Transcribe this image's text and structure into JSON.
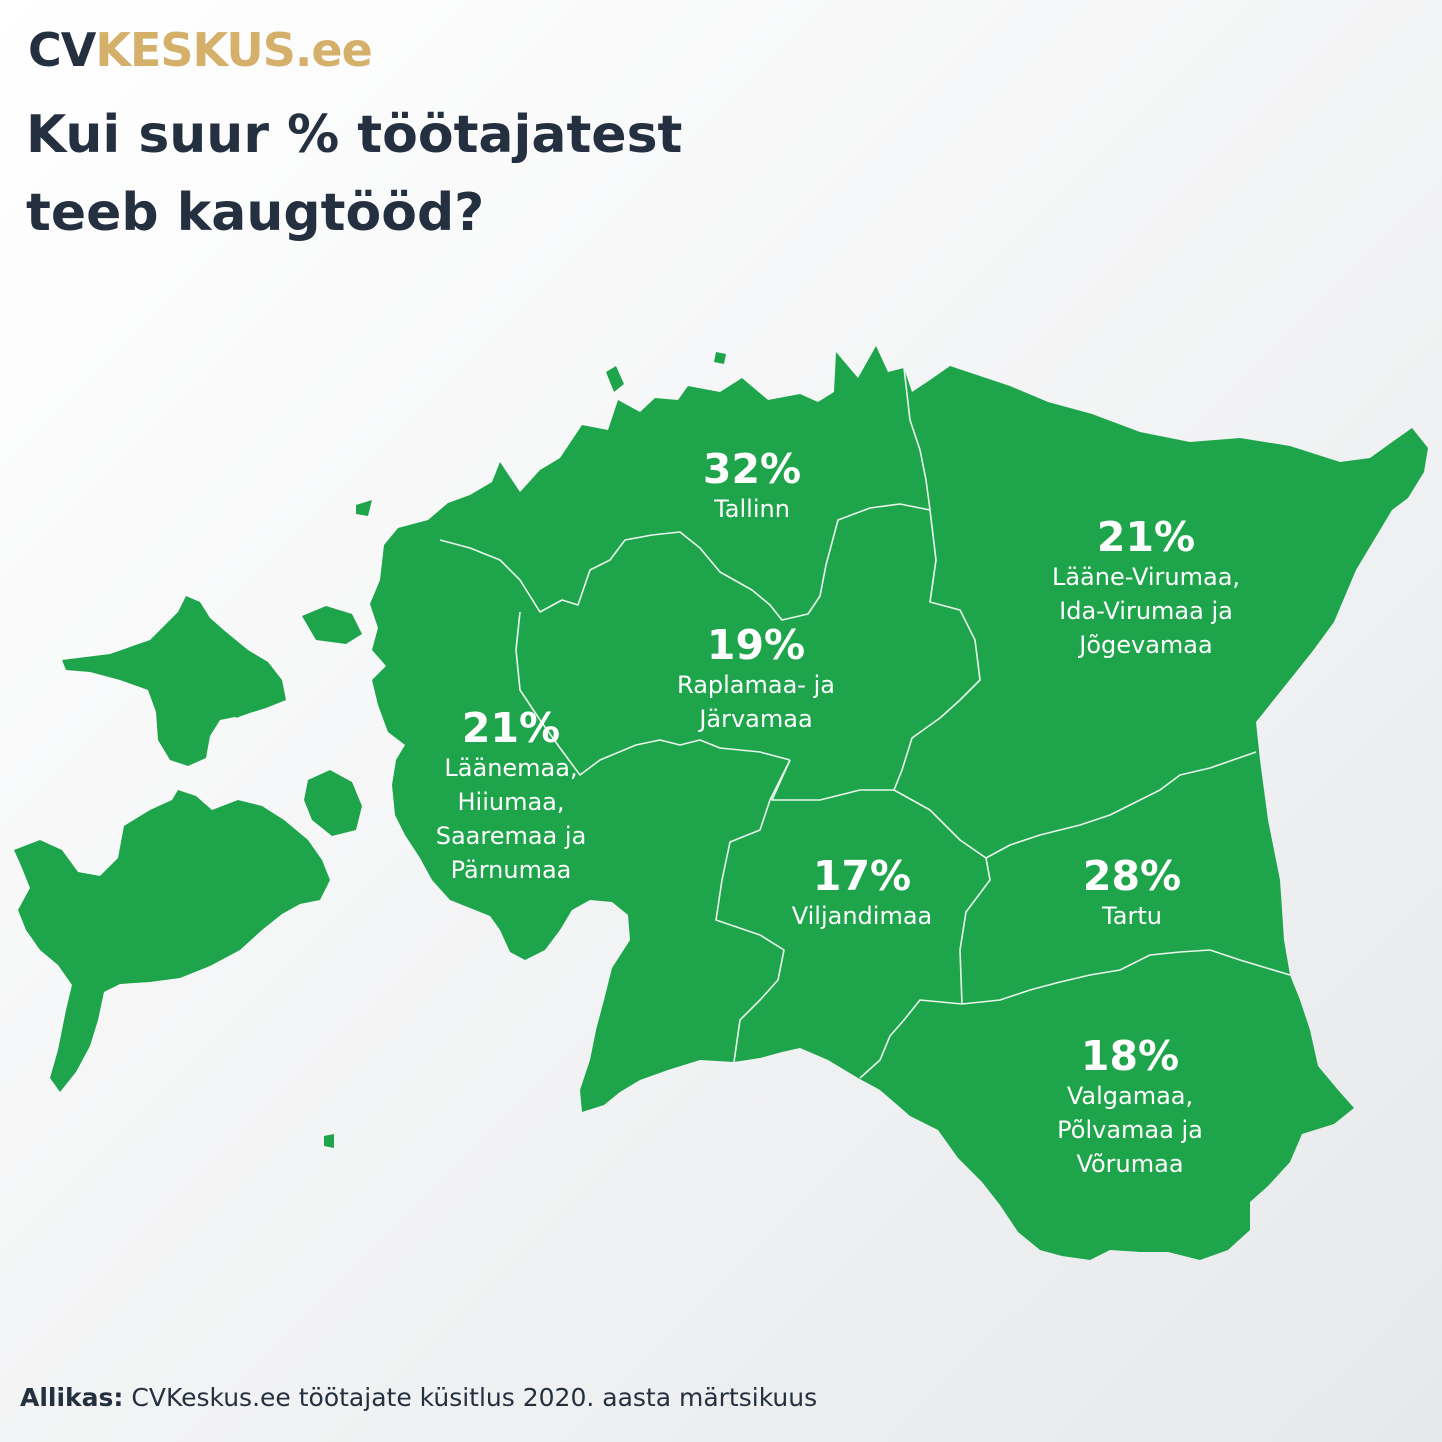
{
  "brand": {
    "part1": "CV",
    "part2": "KESKUS",
    "part3": ".ee"
  },
  "title": {
    "line1": "Kui suur % töötajatest",
    "line2": "teeb kaugtööd?"
  },
  "colors": {
    "map": "#1ea54b",
    "border": "#e9f6ec",
    "text_dark": "#243040",
    "brand_gold": "#d5b06a"
  },
  "regions": [
    {
      "id": "tallinn",
      "percent": "32%",
      "name": "Tallinn"
    },
    {
      "id": "east",
      "percent": "21%",
      "name": "Lääne-Virumaa,\nIda-Virumaa ja\nJõgevamaa"
    },
    {
      "id": "central",
      "percent": "19%",
      "name": "Raplamaa- ja\nJärvamaa"
    },
    {
      "id": "west",
      "percent": "21%",
      "name": "Läänemaa,\nHiiumaa,\nSaaremaa ja\nPärnumaa"
    },
    {
      "id": "viljandi",
      "percent": "17%",
      "name": "Viljandimaa"
    },
    {
      "id": "tartu",
      "percent": "28%",
      "name": "Tartu"
    },
    {
      "id": "south",
      "percent": "18%",
      "name": "Valgamaa,\nPõlvamaa ja\nVõrumaa"
    }
  ],
  "source": {
    "label": "Allikas:",
    "text": "CVKeskus.ee töötajate küsitlus 2020. aasta märtsikuus"
  }
}
